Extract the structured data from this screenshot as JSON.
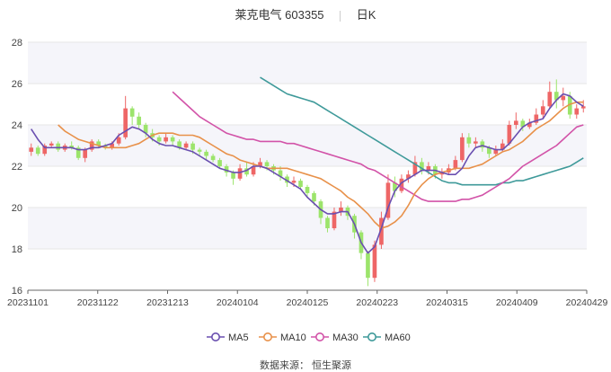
{
  "header": {
    "stock_name": "莱克电气",
    "stock_code": "603355",
    "period": "日K"
  },
  "source": "数据来源：   恒生聚源",
  "colors": {
    "up": "#ee6666",
    "down": "#9ce46b",
    "ma5": "#6a4fb0",
    "ma10": "#e8914a",
    "ma30": "#d253a8",
    "ma60": "#3f9a9a",
    "grid": "#e6e6e6",
    "plot_bg_band": "#f5f5fa",
    "text": "#333333"
  },
  "chart_data": {
    "type": "candlestick",
    "ylim": [
      16,
      28
    ],
    "yticks": [
      16,
      18,
      20,
      22,
      24,
      26,
      28
    ],
    "date_ticks": [
      "20231101",
      "20231122",
      "20231213",
      "20240104",
      "20240125",
      "20240223",
      "20240315",
      "20240409",
      "20240429"
    ],
    "grid": true,
    "legend_position": "bottom-center",
    "legend": [
      "MA5",
      "MA10",
      "MA30",
      "MA60"
    ],
    "candles": [
      [
        22.7,
        22.9,
        22.5,
        23.1
      ],
      [
        22.9,
        22.6,
        22.5,
        23.0
      ],
      [
        22.6,
        23.0,
        22.5,
        23.1
      ],
      [
        23.0,
        23.1,
        22.9,
        23.2
      ],
      [
        23.1,
        22.8,
        22.7,
        23.2
      ],
      [
        22.8,
        23.0,
        22.7,
        23.1
      ],
      [
        23.0,
        22.9,
        22.8,
        23.2
      ],
      [
        22.9,
        22.4,
        22.3,
        23.0
      ],
      [
        22.4,
        22.8,
        22.2,
        22.9
      ],
      [
        22.8,
        23.2,
        22.7,
        23.3
      ],
      [
        23.2,
        23.0,
        22.9,
        23.3
      ],
      [
        23.0,
        22.9,
        22.8,
        23.1
      ],
      [
        22.9,
        23.1,
        22.8,
        23.2
      ],
      [
        23.1,
        23.4,
        23.0,
        23.6
      ],
      [
        23.4,
        24.8,
        23.3,
        25.4
      ],
      [
        24.8,
        24.4,
        24.0,
        24.9
      ],
      [
        24.4,
        24.0,
        23.8,
        24.6
      ],
      [
        24.0,
        23.6,
        23.4,
        24.1
      ],
      [
        23.6,
        23.4,
        23.2,
        23.8
      ],
      [
        23.4,
        23.2,
        23.0,
        23.5
      ],
      [
        23.2,
        23.4,
        23.1,
        23.6
      ],
      [
        23.4,
        23.2,
        23.0,
        23.5
      ],
      [
        23.2,
        22.9,
        22.8,
        23.3
      ],
      [
        22.9,
        23.1,
        22.8,
        23.2
      ],
      [
        23.1,
        22.8,
        22.6,
        23.2
      ],
      [
        22.8,
        22.7,
        22.5,
        22.9
      ],
      [
        22.7,
        22.5,
        22.3,
        22.8
      ],
      [
        22.5,
        22.3,
        22.2,
        22.6
      ],
      [
        22.3,
        22.0,
        21.9,
        22.4
      ],
      [
        22.0,
        21.7,
        21.5,
        22.1
      ],
      [
        21.7,
        21.4,
        21.1,
        21.8
      ],
      [
        21.4,
        21.9,
        21.3,
        22.1
      ],
      [
        21.9,
        21.6,
        21.5,
        22.2
      ],
      [
        21.6,
        22.0,
        21.5,
        22.2
      ],
      [
        22.0,
        22.2,
        21.9,
        22.4
      ],
      [
        22.2,
        22.0,
        21.8,
        22.3
      ],
      [
        22.0,
        21.8,
        21.6,
        22.1
      ],
      [
        21.8,
        21.5,
        21.3,
        22.0
      ],
      [
        21.5,
        21.2,
        21.0,
        21.6
      ],
      [
        21.2,
        21.3,
        21.0,
        21.5
      ],
      [
        21.3,
        21.0,
        20.9,
        21.4
      ],
      [
        21.0,
        20.7,
        20.5,
        21.1
      ],
      [
        20.7,
        20.3,
        20.1,
        20.8
      ],
      [
        20.3,
        19.5,
        19.2,
        20.4
      ],
      [
        19.5,
        19.0,
        18.8,
        19.6
      ],
      [
        19.0,
        19.8,
        18.9,
        20.0
      ],
      [
        19.8,
        20.0,
        19.6,
        20.3
      ],
      [
        20.0,
        19.6,
        19.4,
        20.1
      ],
      [
        19.6,
        18.8,
        18.5,
        19.7
      ],
      [
        18.8,
        17.8,
        17.5,
        18.9
      ],
      [
        17.8,
        16.6,
        16.2,
        17.9
      ],
      [
        16.6,
        18.2,
        16.4,
        18.4
      ],
      [
        18.2,
        19.5,
        18.0,
        19.8
      ],
      [
        19.5,
        21.2,
        19.4,
        21.6
      ],
      [
        21.2,
        20.8,
        20.5,
        21.5
      ],
      [
        20.8,
        21.4,
        20.7,
        21.6
      ],
      [
        21.4,
        21.6,
        21.2,
        21.8
      ],
      [
        21.6,
        22.2,
        21.5,
        22.5
      ],
      [
        22.2,
        21.8,
        21.6,
        22.4
      ],
      [
        21.8,
        22.0,
        21.6,
        22.2
      ],
      [
        22.0,
        21.6,
        21.4,
        22.1
      ],
      [
        21.6,
        21.7,
        21.4,
        21.9
      ],
      [
        21.7,
        21.9,
        21.6,
        22.1
      ],
      [
        21.9,
        22.3,
        21.8,
        22.5
      ],
      [
        22.3,
        23.4,
        22.2,
        23.6
      ],
      [
        23.4,
        23.1,
        22.9,
        23.6
      ],
      [
        23.1,
        23.2,
        22.9,
        23.4
      ],
      [
        23.2,
        22.9,
        22.7,
        23.3
      ],
      [
        22.9,
        22.6,
        22.4,
        23.0
      ],
      [
        22.6,
        22.8,
        22.5,
        23.0
      ],
      [
        22.8,
        23.1,
        22.7,
        23.3
      ],
      [
        23.1,
        24.0,
        23.0,
        24.2
      ],
      [
        24.0,
        24.2,
        23.8,
        24.6
      ],
      [
        24.2,
        23.9,
        23.7,
        24.3
      ],
      [
        23.9,
        24.1,
        23.8,
        24.3
      ],
      [
        24.1,
        24.5,
        24.0,
        24.8
      ],
      [
        24.5,
        24.9,
        24.3,
        25.2
      ],
      [
        24.9,
        25.6,
        24.8,
        26.1
      ],
      [
        25.6,
        25.2,
        24.8,
        26.2
      ],
      [
        25.2,
        25.4,
        24.9,
        25.8
      ],
      [
        25.4,
        24.5,
        24.3,
        25.6
      ],
      [
        24.5,
        24.8,
        24.3,
        25.0
      ],
      [
        24.8,
        24.9,
        24.6,
        25.2
      ]
    ],
    "ma5": [
      23.8,
      23.3,
      22.9,
      22.9,
      22.9,
      22.9,
      22.9,
      22.8,
      22.8,
      22.9,
      22.9,
      23.0,
      23.1,
      23.5,
      23.7,
      23.9,
      23.8,
      23.6,
      23.3,
      23.1,
      23.0,
      23.0,
      22.9,
      22.8,
      22.7,
      22.5,
      22.3,
      22.1,
      21.9,
      21.8,
      21.7,
      21.7,
      21.8,
      22.0,
      22.0,
      21.9,
      21.7,
      21.5,
      21.3,
      21.1,
      20.9,
      20.5,
      20.2,
      19.9,
      19.7,
      19.7,
      19.8,
      19.8,
      19.2,
      18.3,
      17.8,
      18.1,
      19.0,
      20.0,
      20.8,
      21.2,
      21.4,
      21.6,
      21.8,
      21.8,
      21.8,
      21.7,
      21.6,
      21.6,
      21.9,
      22.5,
      22.9,
      23.0,
      22.9,
      22.8,
      22.8,
      23.1,
      23.5,
      23.9,
      24.1,
      24.2,
      24.3,
      24.8,
      25.2,
      25.5,
      25.4,
      25.1,
      24.9
    ],
    "ma10": [
      24.0,
      23.7,
      23.5,
      23.3,
      23.2,
      23.1,
      23.0,
      22.9,
      22.9,
      22.9,
      22.9,
      23.0,
      23.1,
      23.3,
      23.5,
      23.6,
      23.6,
      23.6,
      23.5,
      23.5,
      23.5,
      23.4,
      23.2,
      23.0,
      22.8,
      22.6,
      22.5,
      22.3,
      22.2,
      22.1,
      22.0,
      21.9,
      21.9,
      21.9,
      21.9,
      21.8,
      21.7,
      21.6,
      21.5,
      21.4,
      21.2,
      21.0,
      20.8,
      20.5,
      20.3,
      20.0,
      19.7,
      19.3,
      19.0,
      19.1,
      19.3,
      19.6,
      20.1,
      20.7,
      21.1,
      21.4,
      21.6,
      21.7,
      21.8,
      21.9,
      21.9,
      21.9,
      22.0,
      22.1,
      22.3,
      22.5,
      22.7,
      22.8,
      23.0,
      23.2,
      23.5,
      23.8,
      24.0,
      24.2,
      24.5,
      24.8,
      25.0,
      25.1,
      25.1
    ],
    "ma30": [
      25.6,
      25.3,
      25.0,
      24.7,
      24.4,
      24.2,
      24.0,
      23.8,
      23.6,
      23.5,
      23.4,
      23.3,
      23.3,
      23.2,
      23.2,
      23.2,
      23.2,
      23.1,
      23.1,
      23.0,
      22.9,
      22.8,
      22.7,
      22.6,
      22.5,
      22.4,
      22.3,
      22.2,
      22.1,
      21.9,
      21.8,
      21.6,
      21.4,
      21.2,
      21.0,
      20.8,
      20.6,
      20.4,
      20.3,
      20.3,
      20.3,
      20.3,
      20.3,
      20.4,
      20.4,
      20.5,
      20.6,
      20.8,
      21.0,
      21.2,
      21.4,
      21.7,
      22.0,
      22.2,
      22.4,
      22.6,
      22.8,
      23.0,
      23.3,
      23.6,
      23.9,
      24.0
    ],
    "ma60": [
      26.3,
      26.1,
      25.9,
      25.7,
      25.5,
      25.4,
      25.3,
      25.2,
      25.1,
      24.9,
      24.7,
      24.5,
      24.3,
      24.1,
      23.9,
      23.7,
      23.5,
      23.3,
      23.1,
      22.9,
      22.7,
      22.5,
      22.3,
      22.1,
      21.9,
      21.7,
      21.5,
      21.3,
      21.2,
      21.2,
      21.1,
      21.1,
      21.1,
      21.1,
      21.1,
      21.1,
      21.2,
      21.2,
      21.3,
      21.3,
      21.4,
      21.5,
      21.6,
      21.7,
      21.8,
      21.9,
      22.0,
      22.2,
      22.4
    ]
  }
}
